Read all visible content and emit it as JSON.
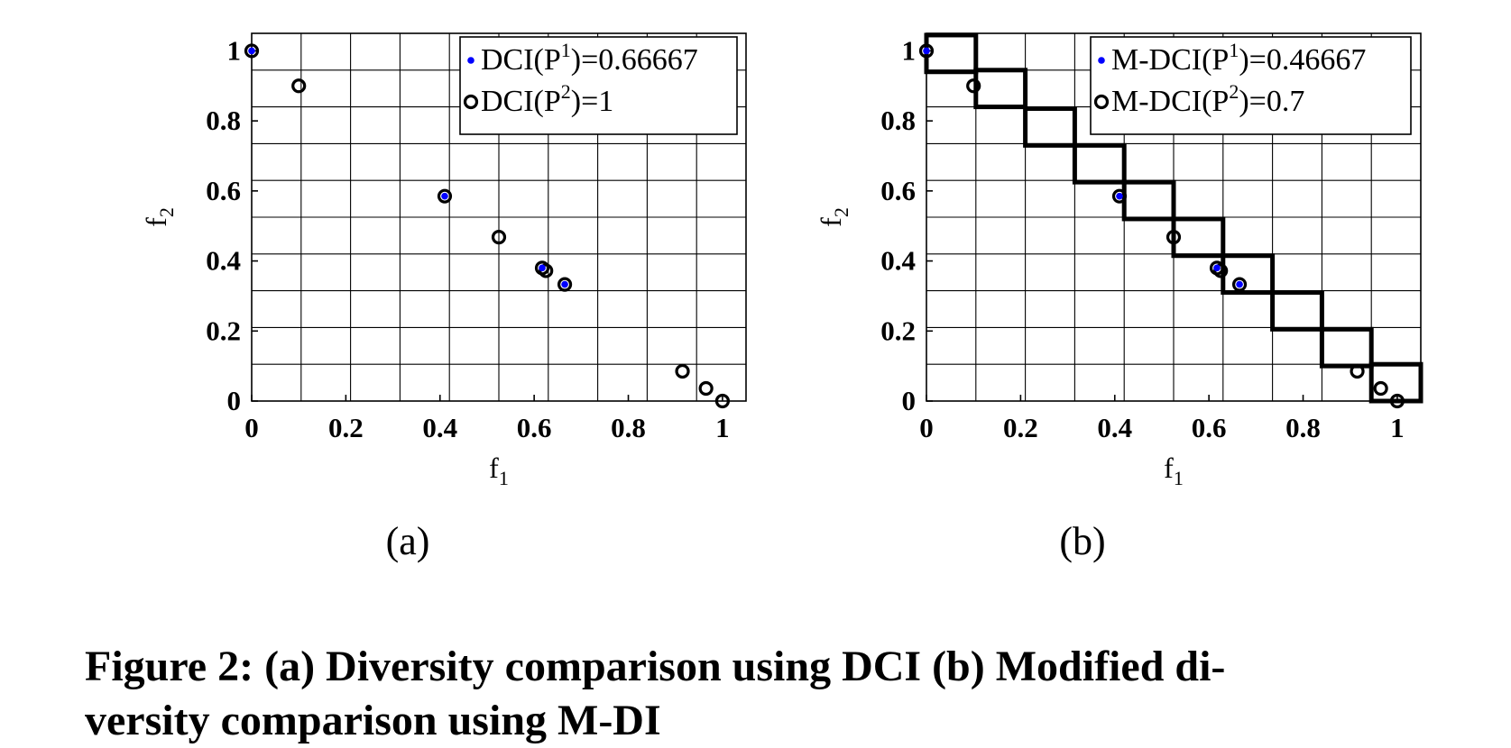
{
  "chart_data": [
    {
      "type": "scatter",
      "panel_label": "(a)",
      "xlabel": "f",
      "xlabel_sub": "1",
      "ylabel": "f",
      "ylabel_sub": "2",
      "xlim": [
        0,
        1.05
      ],
      "ylim": [
        0,
        1.05
      ],
      "xticks": [
        0,
        0.2,
        0.4,
        0.6,
        0.8,
        1
      ],
      "yticks": [
        0,
        0.2,
        0.4,
        0.6,
        0.8,
        1
      ],
      "tick_labels": [
        "0",
        "0.2",
        "0.4",
        "0.6",
        "0.8",
        "1"
      ],
      "grid_step": 0.105,
      "grid": true,
      "legend_position": "top-right",
      "series": [
        {
          "name": "P1",
          "legend": {
            "pre": "DCI(P",
            "sup": "1",
            "post": ")=0.66667"
          },
          "marker": "dot",
          "color": "#0000ff",
          "points": [
            [
              0,
              1
            ],
            [
              0.41,
              0.585
            ],
            [
              0.617,
              0.38
            ],
            [
              0.665,
              0.333
            ]
          ]
        },
        {
          "name": "P2",
          "legend": {
            "pre": "DCI(P",
            "sup": "2",
            "post": ")=1"
          },
          "marker": "circle",
          "color": "#000000",
          "points": [
            [
              0,
              1
            ],
            [
              0.1,
              0.9
            ],
            [
              0.41,
              0.585
            ],
            [
              0.525,
              0.468
            ],
            [
              0.617,
              0.38
            ],
            [
              0.625,
              0.372
            ],
            [
              0.665,
              0.333
            ],
            [
              0.915,
              0.085
            ],
            [
              0.965,
              0.036
            ],
            [
              1.0,
              0.0
            ]
          ]
        }
      ]
    },
    {
      "type": "scatter",
      "panel_label": "(b)",
      "xlabel": "f",
      "xlabel_sub": "1",
      "ylabel": "f",
      "ylabel_sub": "2",
      "xlim": [
        0,
        1.05
      ],
      "ylim": [
        0,
        1.05
      ],
      "xticks": [
        0,
        0.2,
        0.4,
        0.6,
        0.8,
        1
      ],
      "yticks": [
        0,
        0.2,
        0.4,
        0.6,
        0.8,
        1
      ],
      "tick_labels": [
        "0",
        "0.2",
        "0.4",
        "0.6",
        "0.8",
        "1"
      ],
      "grid_step": 0.105,
      "grid": true,
      "legend_position": "top-right",
      "hyperboxes": [
        [
          0,
          0.94
        ],
        [
          0.105,
          0.84
        ],
        [
          0.21,
          0.73
        ],
        [
          0.315,
          0.625
        ],
        [
          0.42,
          0.52
        ],
        [
          0.525,
          0.415
        ],
        [
          0.63,
          0.31
        ],
        [
          0.735,
          0.205
        ],
        [
          0.84,
          0.1
        ],
        [
          0.945,
          0
        ]
      ],
      "hyperbox_size": 0.105,
      "series": [
        {
          "name": "P1",
          "legend": {
            "pre": "M-DCI(P",
            "sup": "1",
            "post": ")=0.46667"
          },
          "marker": "dot",
          "color": "#0000ff",
          "points": [
            [
              0,
              1
            ],
            [
              0.41,
              0.585
            ],
            [
              0.617,
              0.38
            ],
            [
              0.665,
              0.333
            ]
          ]
        },
        {
          "name": "P2",
          "legend": {
            "pre": "M-DCI(P",
            "sup": "2",
            "post": ")=0.7"
          },
          "marker": "circle",
          "color": "#000000",
          "points": [
            [
              0,
              1
            ],
            [
              0.1,
              0.9
            ],
            [
              0.41,
              0.585
            ],
            [
              0.525,
              0.468
            ],
            [
              0.617,
              0.38
            ],
            [
              0.625,
              0.372
            ],
            [
              0.665,
              0.333
            ],
            [
              0.915,
              0.085
            ],
            [
              0.965,
              0.036
            ],
            [
              1.0,
              0.0
            ]
          ]
        }
      ]
    }
  ],
  "caption": {
    "line1": "Figure 2: (a) Diversity comparison using DCI (b) Modified di-",
    "line2": "versity comparison using M-DI"
  }
}
